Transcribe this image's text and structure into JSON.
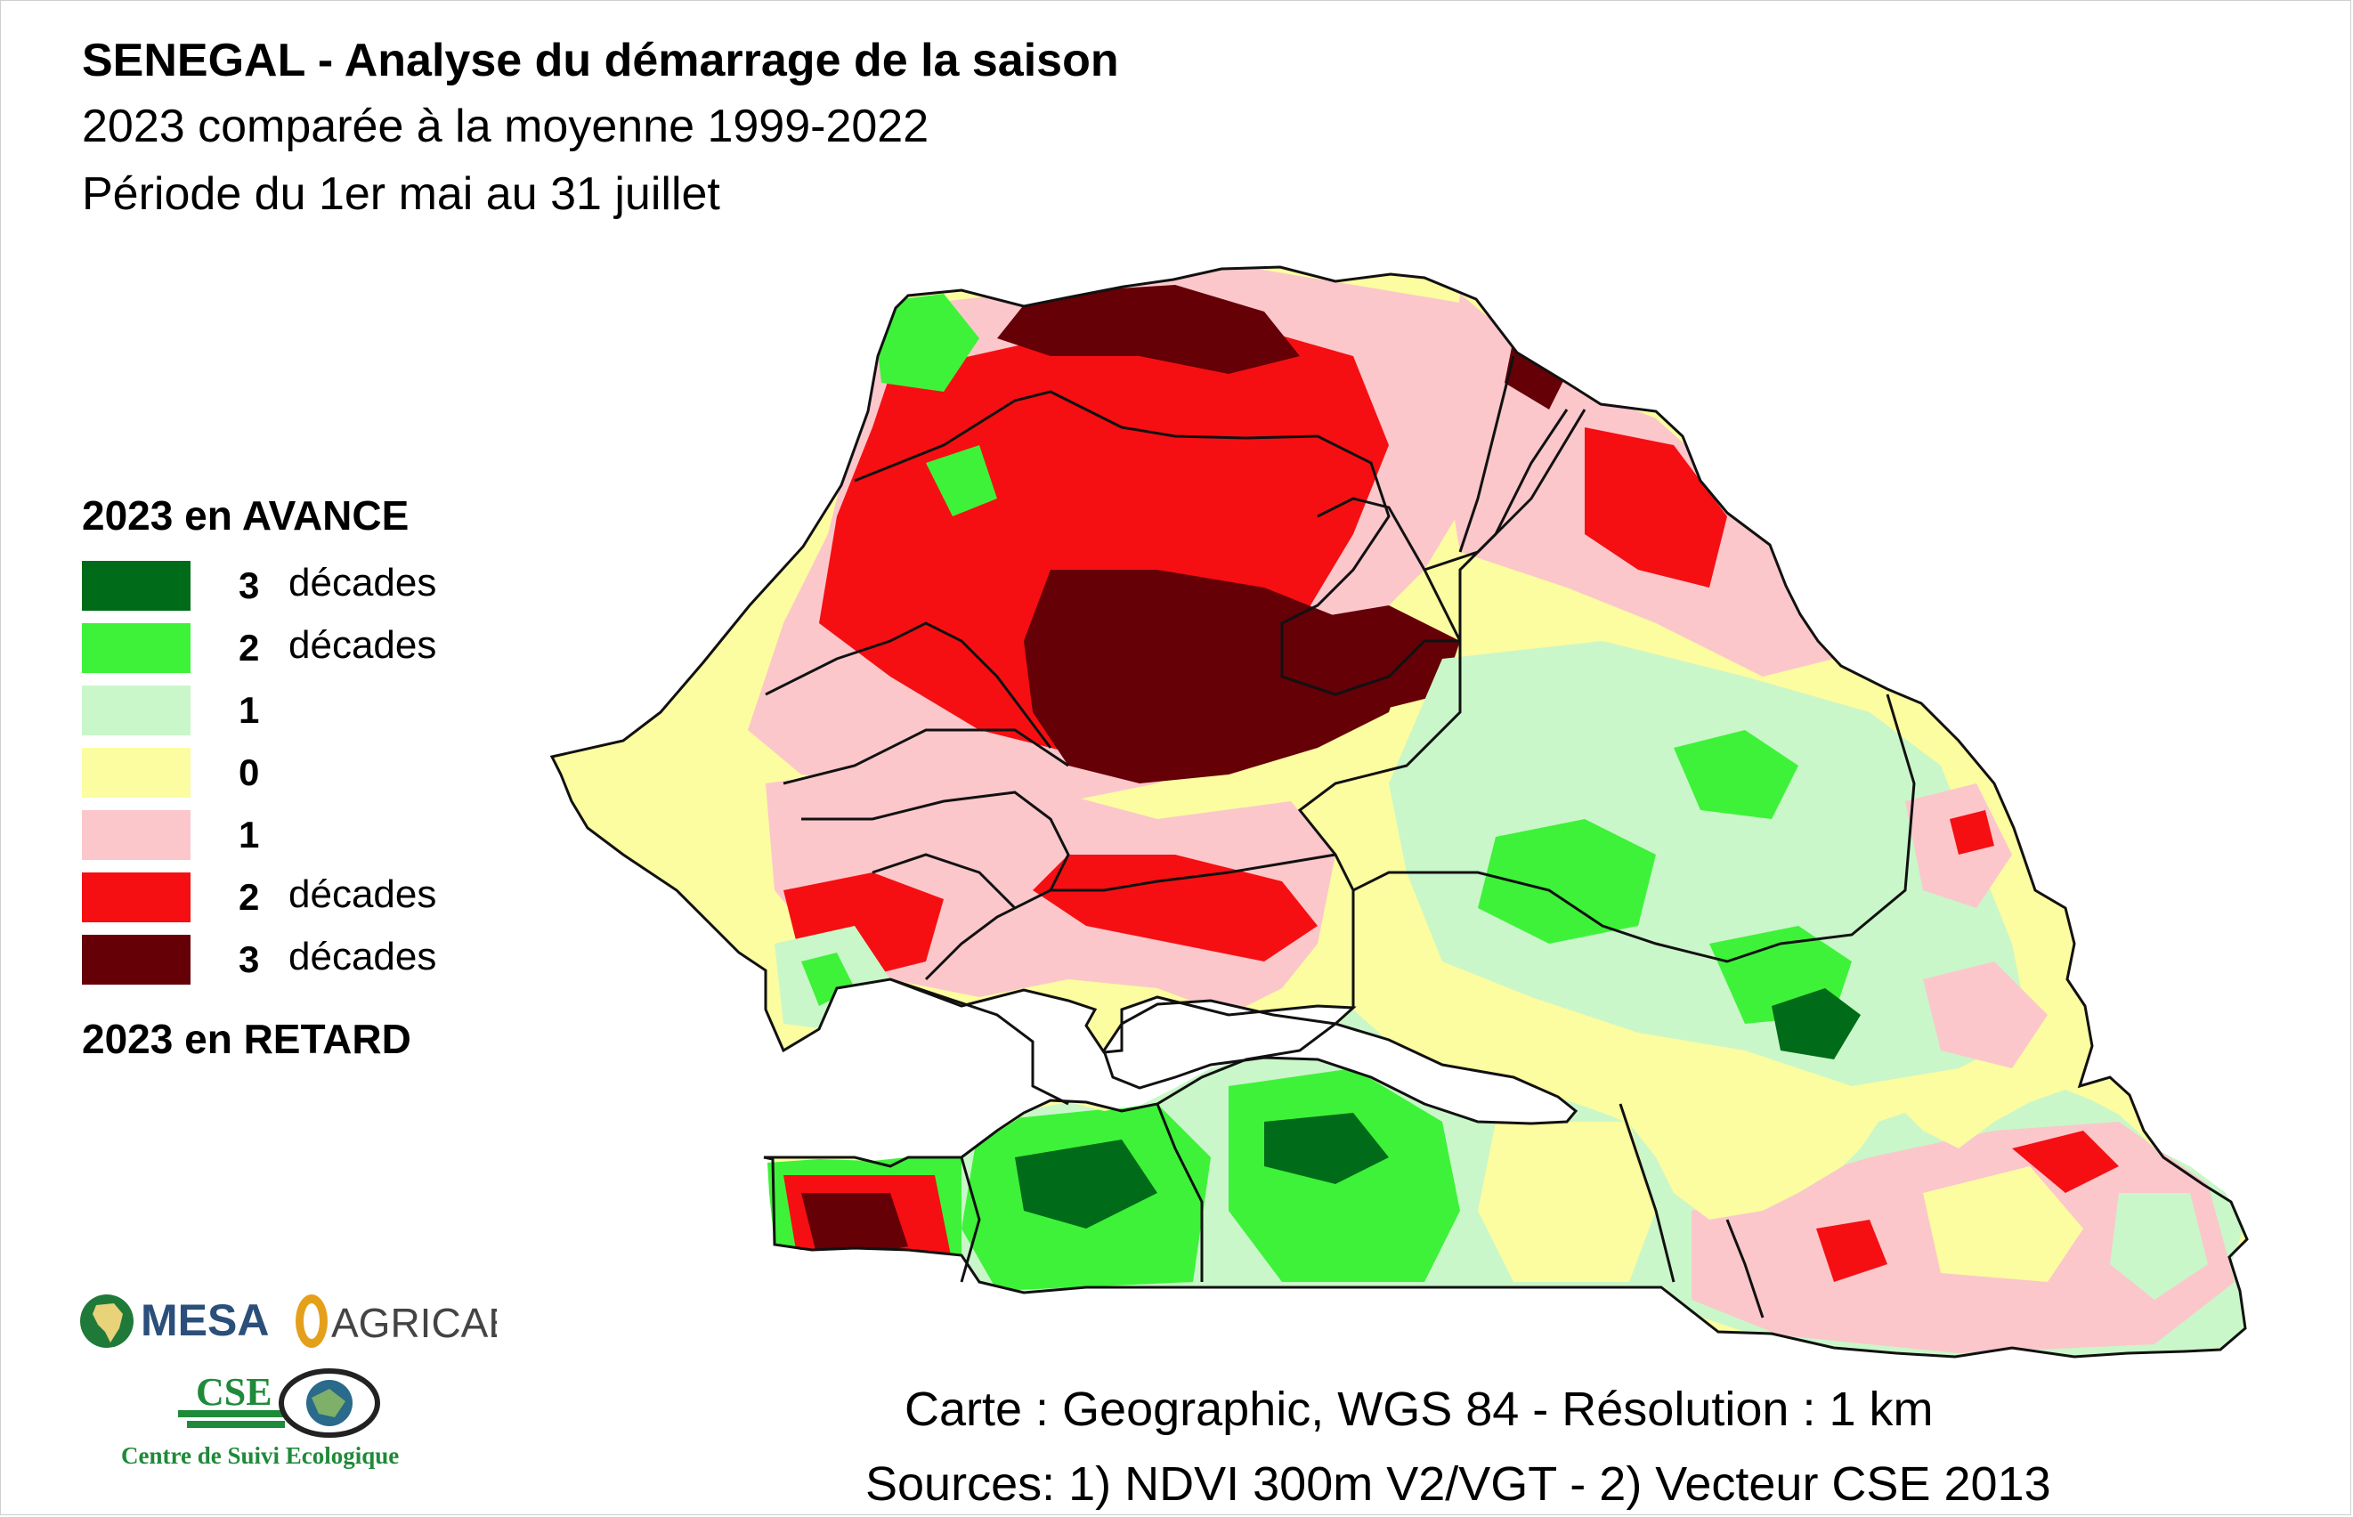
{
  "header": {
    "title": "SENEGAL - Analyse du démarrage de la saison",
    "subtitle_1": "2023 comparée à la moyenne 1999-2022",
    "subtitle_2": "Période du 1er mai au 31 juillet"
  },
  "legend": {
    "top_label": "2023 en AVANCE",
    "bottom_label": "2023 en RETARD",
    "items": [
      {
        "number": "3",
        "word": "décades",
        "color": "#006b18"
      },
      {
        "number": "2",
        "word": "décades",
        "color": "#3ef23a"
      },
      {
        "number": "1",
        "word": "",
        "color": "#c9f7c9"
      },
      {
        "number": "0",
        "word": "",
        "color": "#fcfca0"
      },
      {
        "number": "1",
        "word": "",
        "color": "#fbc7cb"
      },
      {
        "number": "2",
        "word": "décades",
        "color": "#f50f12"
      },
      {
        "number": "3",
        "word": "décades",
        "color": "#640006"
      }
    ]
  },
  "footer": {
    "projection": "Carte : Geographic, WGS 84 - Résolution : 1 km",
    "sources": "Sources: 1) NDVI 300m V2/VGT - 2) Vecteur CSE 2013"
  },
  "logos": {
    "mesa": "MESA",
    "agricab": "AGRICAB",
    "cse": "CSE",
    "cse_name": "Centre de Suivi Ecologique"
  },
  "colors": {
    "boundary": "#111111",
    "water": "#ffffff"
  }
}
